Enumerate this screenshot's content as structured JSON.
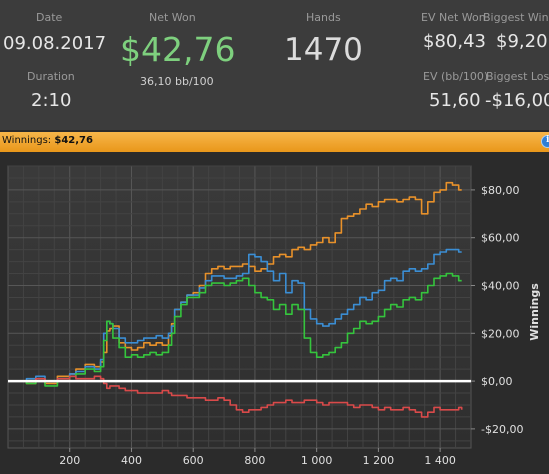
{
  "stats": {
    "date_label": "Date",
    "date_value": "09.08.2017",
    "duration_label": "Duration",
    "duration_value": "2:10",
    "net_won_label": "Net Won",
    "net_won_value": "$42,76",
    "bb_per_100": "36,10 bb/100",
    "hands_label": "Hands",
    "hands_value": "1470",
    "ev_net_won_label": "EV Net Won",
    "ev_net_won_value": "$80,43",
    "biggest_win_label": "Biggest Win",
    "biggest_win_value": "$9,20",
    "ev_bb100_label": "EV (bb/100)",
    "ev_bb100_value": "51,60",
    "biggest_loss_label": "Biggest Loss",
    "biggest_loss_value": "-$16,00"
  },
  "panel": {
    "title_label": "Winnings:",
    "title_value": "$42,76",
    "info_icon": "info-icon"
  },
  "colors": {
    "orange": "#e8912a",
    "blue": "#3b8ed4",
    "green": "#35c43d",
    "red": "#d94a4a",
    "zero_line": "#ffffff",
    "title_bar": "#f0a535"
  },
  "chart_data": {
    "type": "line",
    "xlabel": "",
    "ylabel": "Winnings",
    "xlim": [
      0,
      1500
    ],
    "ylim": [
      -28,
      90
    ],
    "x_ticks": [
      200,
      400,
      600,
      800,
      1000,
      1200,
      1400
    ],
    "x_tick_labels": [
      "200",
      "400",
      "600",
      "800",
      "1 000",
      "1 200",
      "1 400"
    ],
    "y_ticks": [
      -20,
      0,
      20,
      40,
      60,
      80
    ],
    "y_tick_labels": [
      "-$20,00",
      "$0,00",
      "$20,00",
      "$40,00",
      "$60,00",
      "$80,00"
    ],
    "grid": true,
    "series": [
      {
        "color": "#e8912a",
        "points": [
          [
            0,
            0
          ],
          [
            60,
            -1
          ],
          [
            90,
            0
          ],
          [
            120,
            -1
          ],
          [
            160,
            2
          ],
          [
            200,
            3
          ],
          [
            220,
            5
          ],
          [
            250,
            7
          ],
          [
            280,
            6
          ],
          [
            300,
            8
          ],
          [
            310,
            12
          ],
          [
            320,
            21
          ],
          [
            330,
            22
          ],
          [
            340,
            23
          ],
          [
            360,
            16
          ],
          [
            380,
            14
          ],
          [
            400,
            13
          ],
          [
            420,
            14
          ],
          [
            440,
            16
          ],
          [
            460,
            15
          ],
          [
            480,
            16
          ],
          [
            500,
            15
          ],
          [
            520,
            19
          ],
          [
            530,
            24
          ],
          [
            540,
            30
          ],
          [
            560,
            33
          ],
          [
            580,
            36
          ],
          [
            600,
            37
          ],
          [
            620,
            40
          ],
          [
            640,
            45
          ],
          [
            660,
            47
          ],
          [
            680,
            48
          ],
          [
            700,
            47
          ],
          [
            720,
            48
          ],
          [
            740,
            48
          ],
          [
            760,
            49
          ],
          [
            780,
            48
          ],
          [
            800,
            46
          ],
          [
            820,
            47
          ],
          [
            840,
            49
          ],
          [
            860,
            52
          ],
          [
            880,
            53
          ],
          [
            900,
            52
          ],
          [
            920,
            55
          ],
          [
            940,
            56
          ],
          [
            960,
            55
          ],
          [
            980,
            57
          ],
          [
            1000,
            58
          ],
          [
            1020,
            60
          ],
          [
            1040,
            58
          ],
          [
            1060,
            62
          ],
          [
            1080,
            68
          ],
          [
            1100,
            69
          ],
          [
            1120,
            70
          ],
          [
            1140,
            72
          ],
          [
            1160,
            74
          ],
          [
            1180,
            73
          ],
          [
            1200,
            75
          ],
          [
            1220,
            76
          ],
          [
            1240,
            76
          ],
          [
            1260,
            75
          ],
          [
            1280,
            76
          ],
          [
            1300,
            77
          ],
          [
            1320,
            76
          ],
          [
            1340,
            70
          ],
          [
            1360,
            75
          ],
          [
            1380,
            79
          ],
          [
            1400,
            80
          ],
          [
            1420,
            83
          ],
          [
            1440,
            82
          ],
          [
            1460,
            80
          ],
          [
            1470,
            80
          ]
        ]
      },
      {
        "color": "#3b8ed4",
        "points": [
          [
            0,
            0
          ],
          [
            60,
            1
          ],
          [
            90,
            2
          ],
          [
            120,
            0
          ],
          [
            160,
            1
          ],
          [
            200,
            3
          ],
          [
            220,
            4
          ],
          [
            250,
            6
          ],
          [
            280,
            5
          ],
          [
            300,
            9
          ],
          [
            310,
            20
          ],
          [
            320,
            25
          ],
          [
            330,
            24
          ],
          [
            340,
            22
          ],
          [
            360,
            18
          ],
          [
            380,
            16
          ],
          [
            400,
            16
          ],
          [
            420,
            17
          ],
          [
            440,
            18
          ],
          [
            460,
            18
          ],
          [
            480,
            19
          ],
          [
            500,
            18
          ],
          [
            520,
            20
          ],
          [
            530,
            23
          ],
          [
            540,
            30
          ],
          [
            560,
            33
          ],
          [
            580,
            36
          ],
          [
            600,
            36
          ],
          [
            620,
            39
          ],
          [
            640,
            42
          ],
          [
            660,
            44
          ],
          [
            680,
            44
          ],
          [
            700,
            43
          ],
          [
            720,
            43
          ],
          [
            740,
            44
          ],
          [
            760,
            45
          ],
          [
            780,
            53
          ],
          [
            800,
            52
          ],
          [
            820,
            50
          ],
          [
            840,
            46
          ],
          [
            860,
            42
          ],
          [
            880,
            45
          ],
          [
            900,
            37
          ],
          [
            920,
            42
          ],
          [
            940,
            41
          ],
          [
            960,
            30
          ],
          [
            980,
            26
          ],
          [
            1000,
            24
          ],
          [
            1020,
            23
          ],
          [
            1040,
            24
          ],
          [
            1060,
            26
          ],
          [
            1080,
            28
          ],
          [
            1100,
            30
          ],
          [
            1120,
            32
          ],
          [
            1140,
            35
          ],
          [
            1160,
            34
          ],
          [
            1180,
            37
          ],
          [
            1200,
            38
          ],
          [
            1220,
            42
          ],
          [
            1240,
            43
          ],
          [
            1260,
            42
          ],
          [
            1280,
            46
          ],
          [
            1300,
            47
          ],
          [
            1320,
            46
          ],
          [
            1340,
            47
          ],
          [
            1360,
            49
          ],
          [
            1380,
            53
          ],
          [
            1400,
            54
          ],
          [
            1420,
            55
          ],
          [
            1440,
            55
          ],
          [
            1460,
            54
          ],
          [
            1470,
            54
          ]
        ]
      },
      {
        "color": "#35c43d",
        "points": [
          [
            0,
            0
          ],
          [
            60,
            -1
          ],
          [
            90,
            0
          ],
          [
            120,
            -2
          ],
          [
            160,
            0
          ],
          [
            200,
            2
          ],
          [
            220,
            3
          ],
          [
            250,
            5
          ],
          [
            280,
            4
          ],
          [
            300,
            6
          ],
          [
            310,
            17
          ],
          [
            320,
            25
          ],
          [
            330,
            24
          ],
          [
            340,
            18
          ],
          [
            360,
            14
          ],
          [
            380,
            10
          ],
          [
            400,
            11
          ],
          [
            420,
            10
          ],
          [
            440,
            11
          ],
          [
            460,
            12
          ],
          [
            480,
            11
          ],
          [
            500,
            12
          ],
          [
            520,
            15
          ],
          [
            530,
            20
          ],
          [
            540,
            27
          ],
          [
            560,
            32
          ],
          [
            580,
            35
          ],
          [
            600,
            35
          ],
          [
            620,
            37
          ],
          [
            640,
            40
          ],
          [
            660,
            41
          ],
          [
            680,
            41
          ],
          [
            700,
            40
          ],
          [
            720,
            41
          ],
          [
            740,
            42
          ],
          [
            760,
            43
          ],
          [
            780,
            40
          ],
          [
            800,
            37
          ],
          [
            820,
            35
          ],
          [
            840,
            34
          ],
          [
            860,
            30
          ],
          [
            880,
            32
          ],
          [
            900,
            28
          ],
          [
            920,
            32
          ],
          [
            940,
            30
          ],
          [
            960,
            18
          ],
          [
            980,
            12
          ],
          [
            1000,
            10
          ],
          [
            1020,
            11
          ],
          [
            1040,
            12
          ],
          [
            1060,
            14
          ],
          [
            1080,
            16
          ],
          [
            1100,
            20
          ],
          [
            1120,
            22
          ],
          [
            1140,
            25
          ],
          [
            1160,
            24
          ],
          [
            1180,
            25
          ],
          [
            1200,
            27
          ],
          [
            1220,
            30
          ],
          [
            1240,
            32
          ],
          [
            1260,
            31
          ],
          [
            1280,
            34
          ],
          [
            1300,
            35
          ],
          [
            1320,
            34
          ],
          [
            1340,
            37
          ],
          [
            1360,
            40
          ],
          [
            1380,
            43
          ],
          [
            1400,
            44
          ],
          [
            1420,
            45
          ],
          [
            1440,
            44
          ],
          [
            1460,
            42
          ],
          [
            1470,
            42
          ]
        ]
      },
      {
        "color": "#d94a4a",
        "points": [
          [
            0,
            0
          ],
          [
            60,
            0
          ],
          [
            90,
            1
          ],
          [
            120,
            0
          ],
          [
            160,
            1
          ],
          [
            200,
            2
          ],
          [
            220,
            1
          ],
          [
            250,
            1
          ],
          [
            280,
            2
          ],
          [
            300,
            1
          ],
          [
            310,
            -1
          ],
          [
            320,
            -3
          ],
          [
            330,
            -2
          ],
          [
            340,
            -2
          ],
          [
            360,
            -3
          ],
          [
            380,
            -4
          ],
          [
            400,
            -4
          ],
          [
            420,
            -5
          ],
          [
            440,
            -5
          ],
          [
            460,
            -5
          ],
          [
            480,
            -5
          ],
          [
            500,
            -4
          ],
          [
            520,
            -5
          ],
          [
            530,
            -6
          ],
          [
            540,
            -6
          ],
          [
            560,
            -6
          ],
          [
            580,
            -7
          ],
          [
            600,
            -7
          ],
          [
            620,
            -7
          ],
          [
            640,
            -8
          ],
          [
            660,
            -8
          ],
          [
            680,
            -7
          ],
          [
            700,
            -8
          ],
          [
            720,
            -10
          ],
          [
            740,
            -12
          ],
          [
            760,
            -13
          ],
          [
            780,
            -12
          ],
          [
            800,
            -12
          ],
          [
            820,
            -11
          ],
          [
            840,
            -10
          ],
          [
            860,
            -9
          ],
          [
            880,
            -9
          ],
          [
            900,
            -8
          ],
          [
            920,
            -9
          ],
          [
            940,
            -9
          ],
          [
            960,
            -8
          ],
          [
            980,
            -8
          ],
          [
            1000,
            -9
          ],
          [
            1020,
            -10
          ],
          [
            1040,
            -9
          ],
          [
            1060,
            -9
          ],
          [
            1080,
            -9
          ],
          [
            1100,
            -10
          ],
          [
            1120,
            -11
          ],
          [
            1140,
            -10
          ],
          [
            1160,
            -10
          ],
          [
            1180,
            -11
          ],
          [
            1200,
            -12
          ],
          [
            1220,
            -11
          ],
          [
            1240,
            -12
          ],
          [
            1260,
            -12
          ],
          [
            1280,
            -11
          ],
          [
            1300,
            -12
          ],
          [
            1320,
            -13
          ],
          [
            1340,
            -15
          ],
          [
            1360,
            -13
          ],
          [
            1380,
            -11
          ],
          [
            1400,
            -12
          ],
          [
            1420,
            -12
          ],
          [
            1440,
            -12
          ],
          [
            1460,
            -11
          ],
          [
            1470,
            -12
          ]
        ]
      }
    ]
  }
}
